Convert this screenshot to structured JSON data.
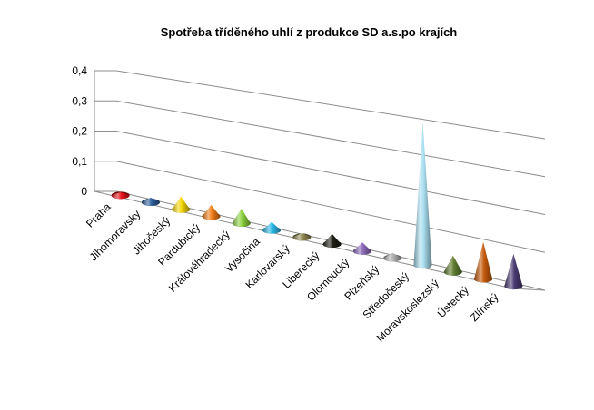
{
  "chart_data": {
    "type": "bar",
    "style": "3d-cone",
    "title": "Spotřeba tříděného uhlí z produkce SD a.s.po krajích",
    "xlabel": "",
    "ylabel": "",
    "ylim": [
      0,
      0.4
    ],
    "yticks": [
      "0",
      "0,1",
      "0,2",
      "0,3",
      "0,4"
    ],
    "grid": true,
    "legend": "none",
    "categories": [
      "Praha",
      "Jihomoravský",
      "Jihočeský",
      "Pardubický",
      "Královéhradecký",
      "Vysočina",
      "Karlovarský",
      "Liberecký",
      "Olomoucký",
      "Plzeňský",
      "Středočeský",
      "Moravskoslezský",
      "Ústecký",
      "Zlínský"
    ],
    "values": [
      0.01,
      0.015,
      0.04,
      0.035,
      0.045,
      0.025,
      0.012,
      0.03,
      0.025,
      0.015,
      0.4,
      0.045,
      0.1,
      0.085
    ],
    "colors": [
      "#e8131b",
      "#2e5f9e",
      "#f2d500",
      "#f07b14",
      "#8ad13c",
      "#2bb6e6",
      "#928a54",
      "#1d1d15",
      "#8a68b8",
      "#b0b0b0",
      "#a9def0",
      "#5f7c2e",
      "#c45a0a",
      "#4a3a72"
    ]
  }
}
